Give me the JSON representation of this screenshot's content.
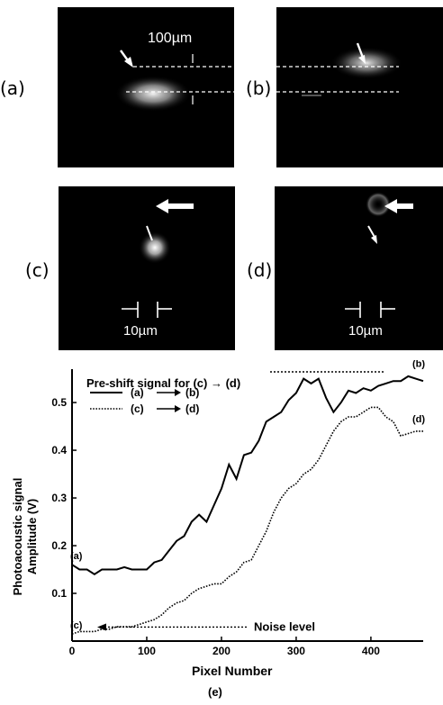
{
  "panels": {
    "a": {
      "label": "(a)"
    },
    "b": {
      "label": "(b)"
    },
    "c": {
      "label": "(c)"
    },
    "d": {
      "label": "(d)"
    }
  },
  "scale_labels": {
    "top": "100µm",
    "bottom_c": "10µm",
    "bottom_d": "10µm"
  },
  "chart_data": {
    "type": "line",
    "caption": "(e)",
    "annotation_top": "Pre-shift signal for (c) → (d)",
    "annotation_noise": "Noise level",
    "xlabel": "Pixel Number",
    "ylabel": "Photoacoustic signal Amplitude (V)",
    "ylabel_lines": [
      "Photoacoustic signal",
      "Amplitude (V)"
    ],
    "xlim": [
      0,
      470
    ],
    "ylim": [
      0.0,
      0.57
    ],
    "x_ticks": [
      0,
      100,
      200,
      300,
      400
    ],
    "y_ticks": [
      0.1,
      0.2,
      0.3,
      0.4,
      0.5
    ],
    "legend": [
      {
        "from": "(a)",
        "to": "(b)",
        "style": "solid"
      },
      {
        "from": "(c)",
        "to": "(d)",
        "style": "dotted"
      }
    ],
    "series": [
      {
        "style": "solid",
        "start_label": "(a)",
        "end_label": "(b)",
        "x": [
          0,
          10,
          20,
          30,
          40,
          50,
          60,
          70,
          80,
          90,
          100,
          110,
          120,
          130,
          140,
          150,
          160,
          170,
          180,
          190,
          200,
          210,
          220,
          230,
          240,
          250,
          260,
          270,
          280,
          290,
          300,
          310,
          320,
          330,
          340,
          350,
          360,
          370,
          380,
          390,
          400,
          410,
          420,
          430,
          440,
          450,
          460,
          470
        ],
        "y": [
          0.16,
          0.15,
          0.15,
          0.14,
          0.15,
          0.15,
          0.15,
          0.155,
          0.15,
          0.15,
          0.15,
          0.165,
          0.17,
          0.19,
          0.21,
          0.22,
          0.25,
          0.265,
          0.25,
          0.285,
          0.32,
          0.37,
          0.34,
          0.39,
          0.395,
          0.42,
          0.46,
          0.47,
          0.48,
          0.505,
          0.52,
          0.55,
          0.54,
          0.55,
          0.51,
          0.48,
          0.5,
          0.525,
          0.52,
          0.53,
          0.525,
          0.535,
          0.54,
          0.545,
          0.545,
          0.555,
          0.55,
          0.545
        ]
      },
      {
        "style": "dotted",
        "start_label": "(c)",
        "end_label": "(d)",
        "x": [
          0,
          10,
          20,
          30,
          40,
          50,
          60,
          70,
          80,
          90,
          100,
          110,
          120,
          130,
          140,
          150,
          160,
          170,
          180,
          190,
          200,
          210,
          220,
          230,
          240,
          250,
          260,
          270,
          280,
          290,
          300,
          310,
          320,
          330,
          340,
          350,
          360,
          370,
          380,
          390,
          400,
          410,
          420,
          430,
          440,
          450,
          460,
          470
        ],
        "y": [
          0.015,
          0.02,
          0.02,
          0.02,
          0.025,
          0.025,
          0.03,
          0.03,
          0.03,
          0.035,
          0.04,
          0.045,
          0.055,
          0.07,
          0.08,
          0.085,
          0.1,
          0.11,
          0.115,
          0.12,
          0.12,
          0.135,
          0.145,
          0.165,
          0.17,
          0.2,
          0.23,
          0.27,
          0.3,
          0.32,
          0.33,
          0.35,
          0.36,
          0.38,
          0.41,
          0.44,
          0.46,
          0.47,
          0.47,
          0.48,
          0.49,
          0.49,
          0.47,
          0.46,
          0.43,
          0.435,
          0.44,
          0.44
        ]
      }
    ]
  }
}
